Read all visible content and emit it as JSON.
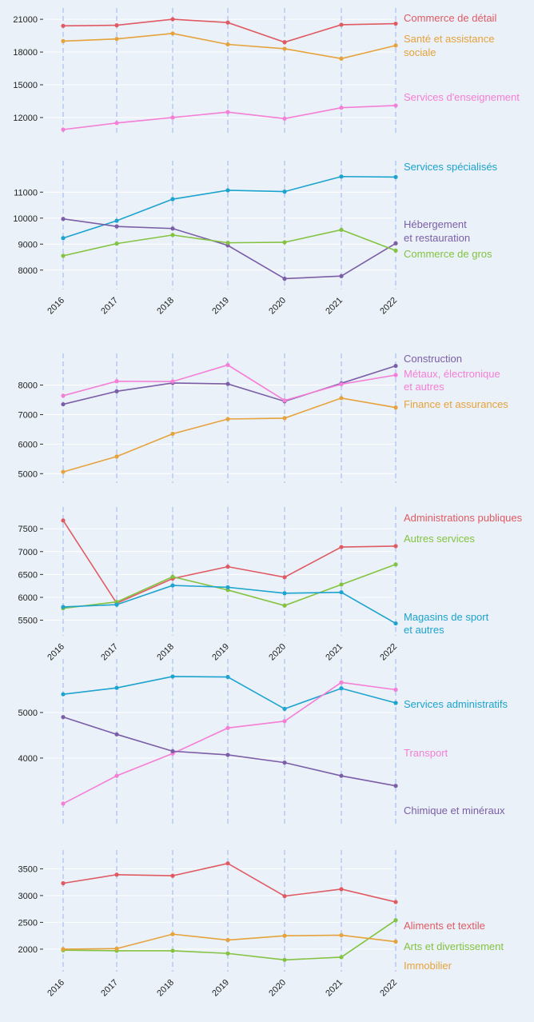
{
  "chart_data": [
    {
      "type": "line",
      "x": [
        2016,
        2017,
        2018,
        2019,
        2020,
        2021,
        2022
      ],
      "ylim": [
        10900,
        21300
      ],
      "yticks": [
        "12000",
        "15000",
        "18000",
        "21000"
      ],
      "xticks": [],
      "series": [
        {
          "name": "Commerce de détail",
          "color": "#e05a63",
          "values": [
            20400,
            20450,
            21000,
            20700,
            18900,
            20500,
            20600
          ]
        },
        {
          "name": "Santé et assistance sociale",
          "color": "#e6a23c",
          "values": [
            19000,
            19200,
            19700,
            18700,
            18300,
            17400,
            18600
          ]
        },
        {
          "name": "Services d'enseignement",
          "color": "#f57ed6",
          "values": [
            10900,
            11500,
            12000,
            12500,
            11900,
            12900,
            13100
          ]
        }
      ]
    },
    {
      "type": "line",
      "x": [
        2016,
        2017,
        2018,
        2019,
        2020,
        2021,
        2022
      ],
      "ylim": [
        7500,
        11900
      ],
      "yticks": [
        "8000",
        "9000",
        "10000",
        "11000"
      ],
      "xticks": [
        "2016",
        "2017",
        "2018",
        "2019",
        "2020",
        "2021",
        "2022"
      ],
      "series": [
        {
          "name": "Services spécialisés",
          "color": "#1ca3cf",
          "values": [
            9230,
            9900,
            10730,
            11070,
            11020,
            11600,
            11580
          ]
        },
        {
          "name": "Hébergement et restauration",
          "color": "#7b5ea7",
          "values": [
            9970,
            9680,
            9600,
            8950,
            7670,
            7770,
            9030
          ]
        },
        {
          "name": "Commerce de gros",
          "color": "#84c341",
          "values": [
            8550,
            9020,
            9350,
            9050,
            9070,
            9550,
            8750
          ]
        }
      ]
    },
    {
      "type": "line",
      "x": [
        2016,
        2017,
        2018,
        2019,
        2020,
        2021,
        2022
      ],
      "ylim": [
        4900,
        8800
      ],
      "yticks": [
        "5000",
        "6000",
        "7000",
        "8000"
      ],
      "xticks": [],
      "series": [
        {
          "name": "Construction",
          "color": "#7b5ea7",
          "values": [
            7350,
            7790,
            8070,
            8040,
            7450,
            8060,
            8650
          ]
        },
        {
          "name": "Métaux, électronique et autres",
          "color": "#f57ed6",
          "values": [
            7640,
            8130,
            8120,
            8680,
            7480,
            8030,
            8340
          ]
        },
        {
          "name": "Finance et assurances",
          "color": "#e6a23c",
          "values": [
            5060,
            5580,
            6350,
            6850,
            6880,
            7560,
            7240
          ]
        }
      ]
    },
    {
      "type": "line",
      "x": [
        2016,
        2017,
        2018,
        2019,
        2020,
        2021,
        2022
      ],
      "ylim": [
        5300,
        7800
      ],
      "yticks": [
        "5500",
        "6000",
        "6500",
        "7000",
        "7500"
      ],
      "xticks": [
        "2016",
        "2017",
        "2018",
        "2019",
        "2020",
        "2021",
        "2022"
      ],
      "series": [
        {
          "name": "Administrations publiques",
          "color": "#e05a63",
          "values": [
            7680,
            5870,
            6410,
            6670,
            6440,
            7100,
            7120
          ]
        },
        {
          "name": "Autres services",
          "color": "#84c341",
          "values": [
            5760,
            5900,
            6450,
            6160,
            5820,
            6280,
            6720
          ]
        },
        {
          "name": "Magasins de sport et autres",
          "color": "#1ca3cf",
          "values": [
            5790,
            5840,
            6260,
            6220,
            6090,
            6110,
            5430
          ]
        }
      ]
    },
    {
      "type": "line",
      "x": [
        2016,
        2017,
        2018,
        2019,
        2020,
        2021,
        2022
      ],
      "ylim": [
        2700,
        6000
      ],
      "yticks": [
        "4000",
        "5000"
      ],
      "xticks": [],
      "series": [
        {
          "name": "Services administratifs",
          "color": "#1ca3cf",
          "values": [
            5400,
            5540,
            5790,
            5780,
            5080,
            5530,
            5210
          ]
        },
        {
          "name": "Transport",
          "color": "#f57ed6",
          "values": [
            3000,
            3610,
            4100,
            4660,
            4810,
            5660,
            5500
          ]
        },
        {
          "name": "Chimique et minéraux",
          "color": "#7b5ea7",
          "values": [
            4900,
            4520,
            4150,
            4070,
            3900,
            3610,
            3390
          ]
        }
      ]
    },
    {
      "type": "line",
      "x": [
        2016,
        2017,
        2018,
        2019,
        2020,
        2021,
        2022
      ],
      "ylim": [
        1700,
        3700
      ],
      "yticks": [
        "2000",
        "2500",
        "3000",
        "3500"
      ],
      "xticks": [
        "2016",
        "2017",
        "2018",
        "2019",
        "2020",
        "2021",
        "2022"
      ],
      "series": [
        {
          "name": "Aliments et textile",
          "color": "#e05a63",
          "values": [
            3230,
            3390,
            3370,
            3600,
            2990,
            3120,
            2880
          ]
        },
        {
          "name": "Arts et divertissement",
          "color": "#84c341",
          "values": [
            1980,
            1970,
            1970,
            1920,
            1800,
            1850,
            2540
          ]
        },
        {
          "name": "Immobilier",
          "color": "#e6a23c",
          "values": [
            2000,
            2010,
            2280,
            2170,
            2250,
            2260,
            2140
          ]
        }
      ]
    }
  ]
}
